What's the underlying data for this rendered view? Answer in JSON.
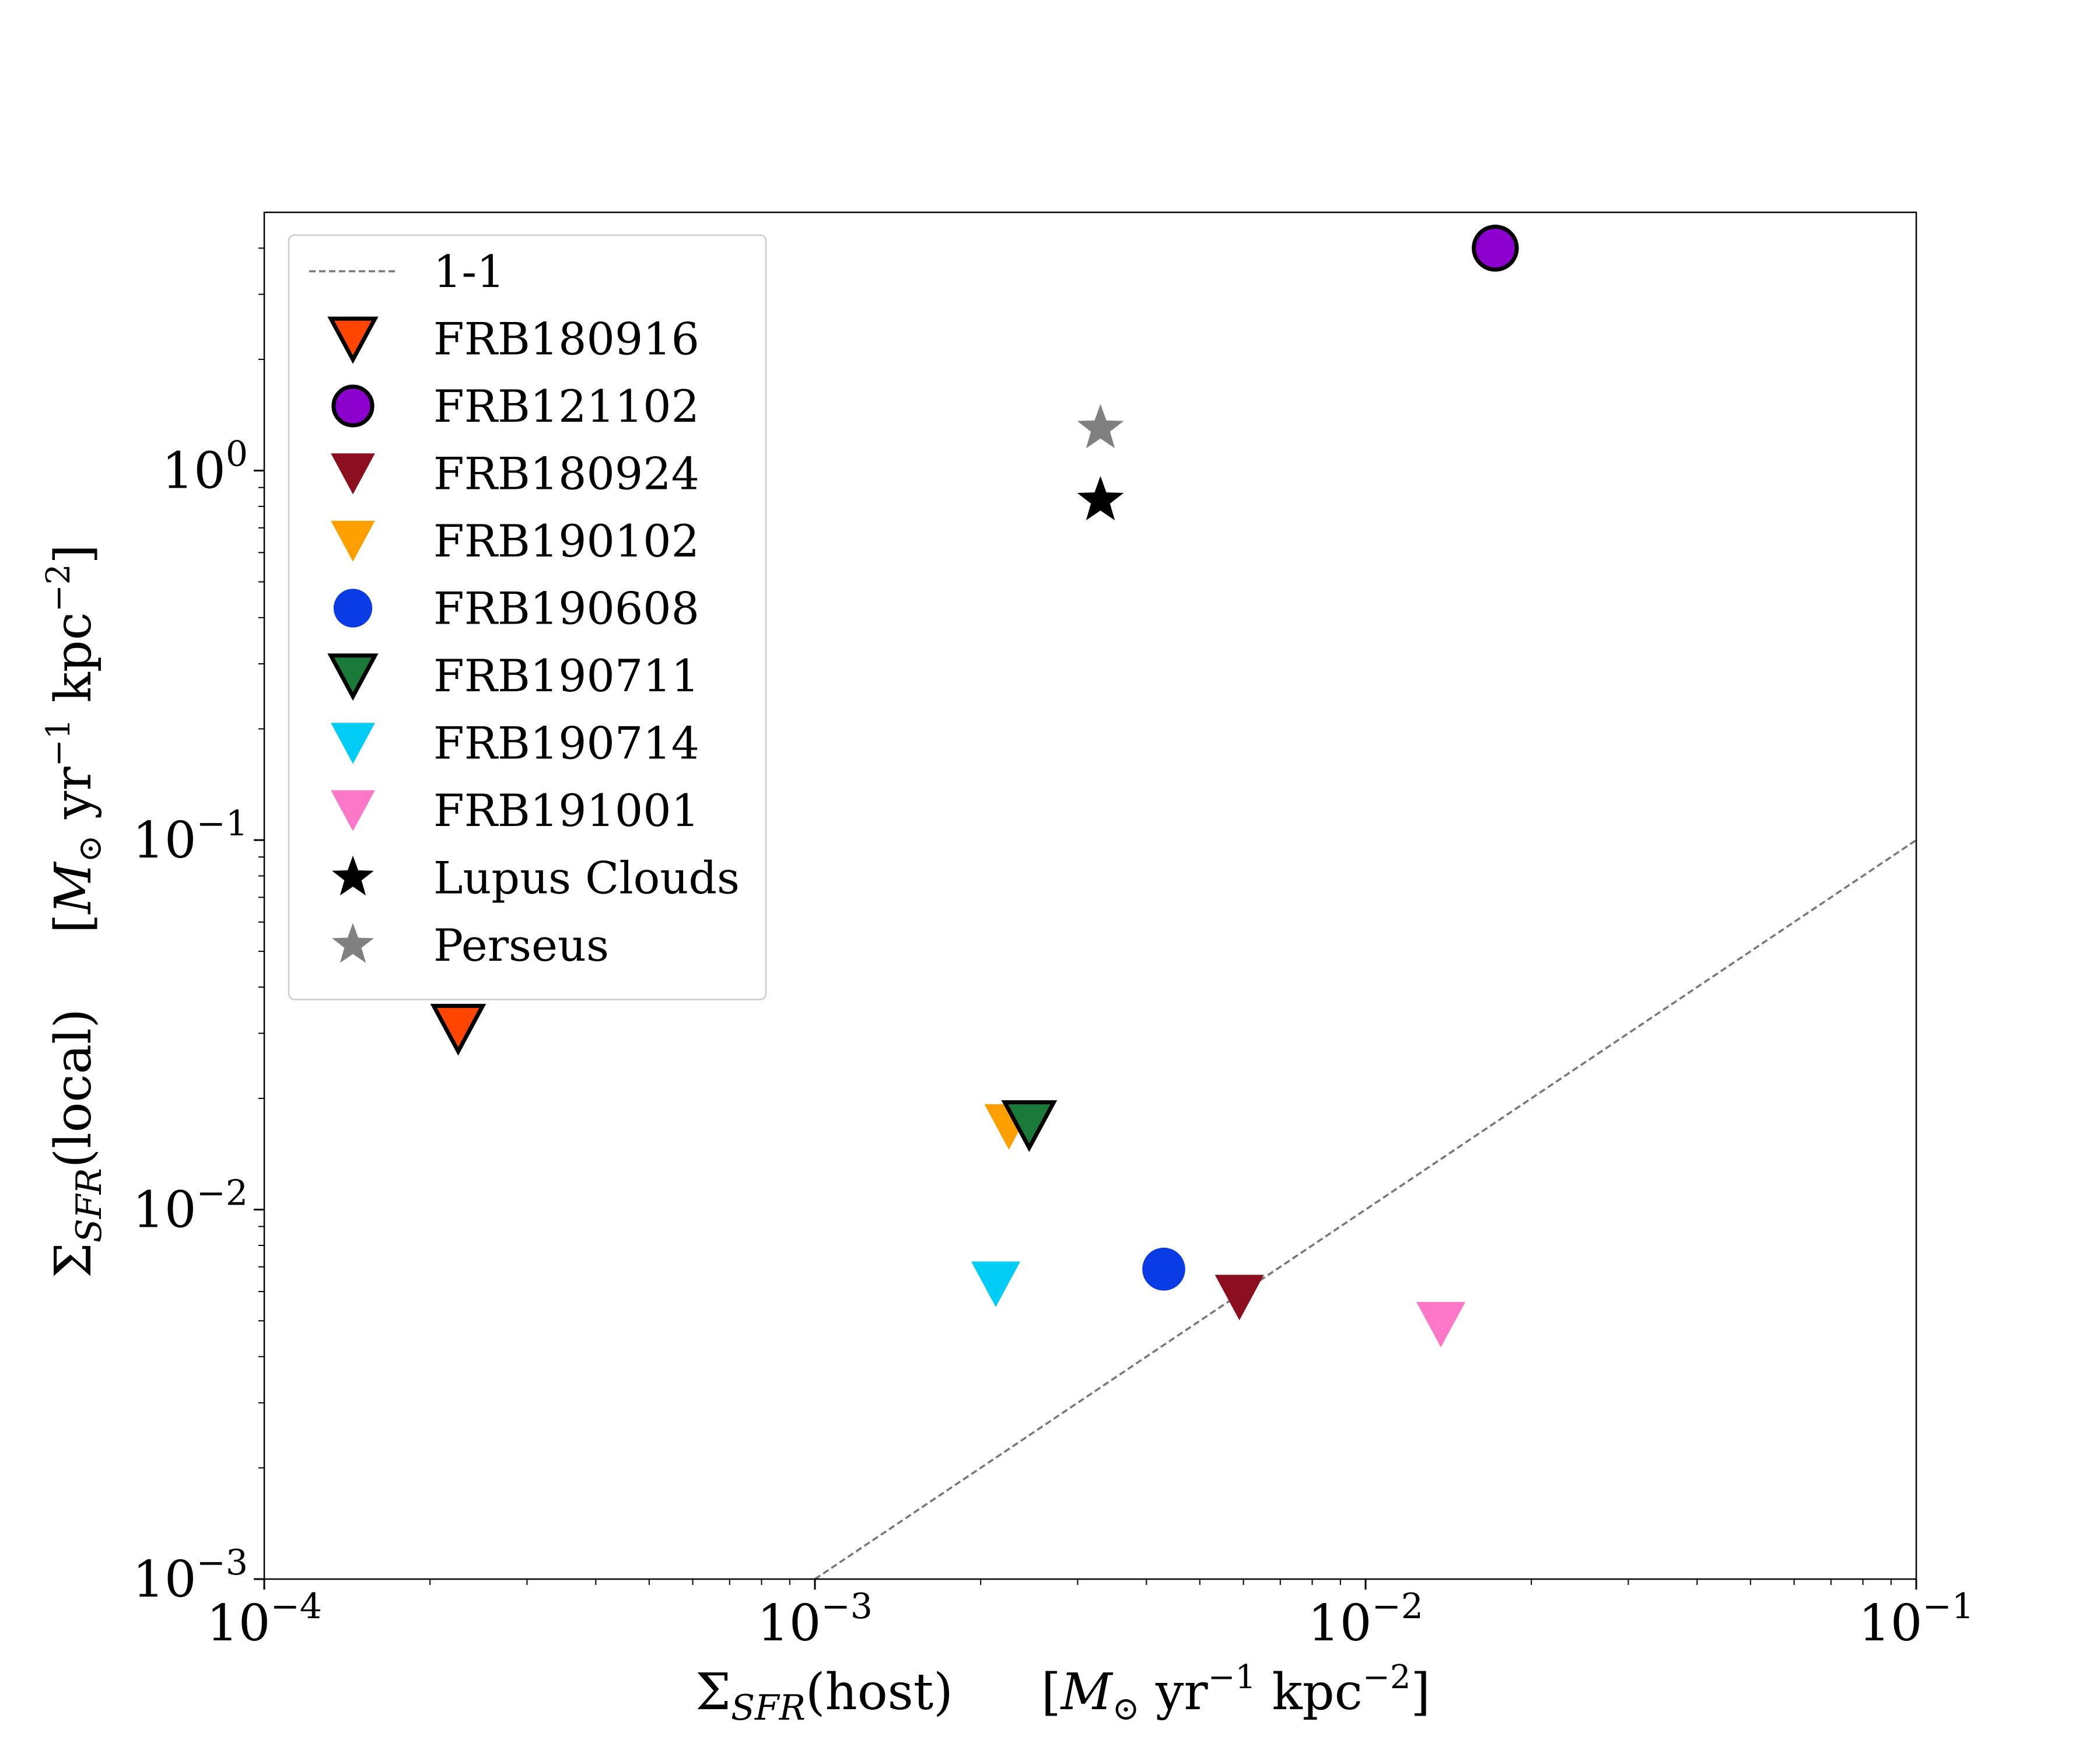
{
  "chart_data": {
    "type": "scatter",
    "title": "",
    "xlabel": "Σ_SFR(host)   [M⊙ yr⁻¹ kpc⁻²]",
    "ylabel": "Σ_SFR(local)   [M⊙ yr⁻¹ kpc⁻²]",
    "xscale": "log",
    "yscale": "log",
    "xlim": [
      0.0001,
      0.1
    ],
    "ylim": [
      0.001,
      5
    ],
    "grid": false,
    "legend_position": "top-left",
    "x_ticks": [
      {
        "value": 0.0001,
        "base": "10",
        "exp": "−4"
      },
      {
        "value": 0.001,
        "base": "10",
        "exp": "−3"
      },
      {
        "value": 0.01,
        "base": "10",
        "exp": "−2"
      },
      {
        "value": 0.1,
        "base": "10",
        "exp": "−1"
      }
    ],
    "y_ticks": [
      {
        "value": 0.001,
        "base": "10",
        "exp": "−3"
      },
      {
        "value": 0.01,
        "base": "10",
        "exp": "−2"
      },
      {
        "value": 0.1,
        "base": "10",
        "exp": "−1"
      },
      {
        "value": 1,
        "base": "10",
        "exp": "0"
      }
    ],
    "reference_line": {
      "name": "1-1",
      "x": [
        0.001,
        0.1
      ],
      "y": [
        0.001,
        0.1
      ],
      "color": "#777777",
      "style": "dashed"
    },
    "series": [
      {
        "name": "FRB180916",
        "marker": "triangle-down",
        "color": "#ff4500",
        "edge": "#000000",
        "x": 0.000225,
        "y": 0.031
      },
      {
        "name": "FRB121102",
        "marker": "circle",
        "color": "#8b00cc",
        "edge": "#000000",
        "x": 0.0172,
        "y": 4.0
      },
      {
        "name": "FRB180924",
        "marker": "triangle-down",
        "color": "#8b0f1e",
        "edge": null,
        "x": 0.0059,
        "y": 0.0058
      },
      {
        "name": "FRB190102",
        "marker": "triangle-down",
        "color": "#ff9f00",
        "edge": null,
        "x": 0.00225,
        "y": 0.0168
      },
      {
        "name": "FRB190608",
        "marker": "circle",
        "color": "#0a3ce6",
        "edge": null,
        "x": 0.0043,
        "y": 0.0069
      },
      {
        "name": "FRB190711",
        "marker": "triangle-down",
        "color": "#1a7a3a",
        "edge": "#000000",
        "x": 0.00245,
        "y": 0.017
      },
      {
        "name": "FRB190714",
        "marker": "triangle-down",
        "color": "#00ccf5",
        "edge": null,
        "x": 0.00213,
        "y": 0.0063
      },
      {
        "name": "FRB191001",
        "marker": "triangle-down",
        "color": "#ff78c8",
        "edge": null,
        "x": 0.0137,
        "y": 0.0049
      },
      {
        "name": "Lupus Clouds",
        "marker": "star",
        "color": "#000000",
        "edge": null,
        "x": 0.0033,
        "y": 0.83
      },
      {
        "name": "Perseus",
        "marker": "star",
        "color": "#808080",
        "edge": null,
        "x": 0.0033,
        "y": 1.3
      }
    ]
  }
}
